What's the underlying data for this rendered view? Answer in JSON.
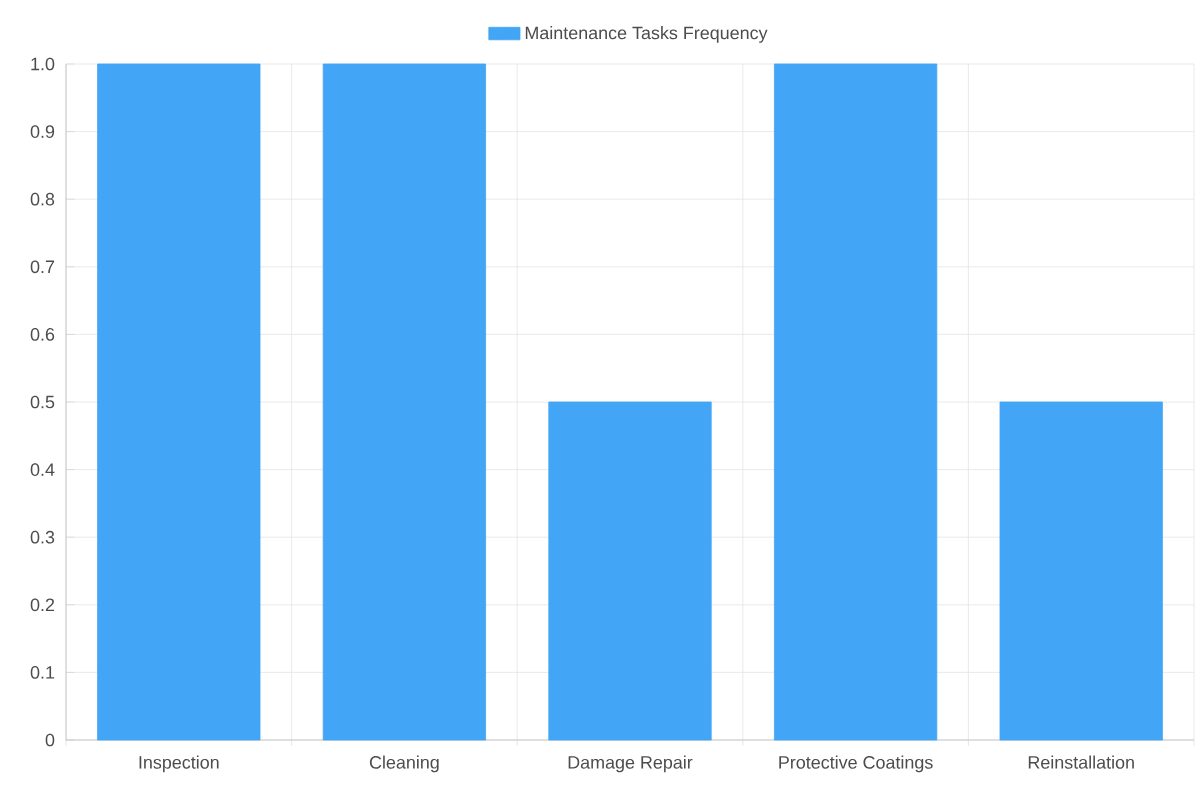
{
  "chart_data": {
    "type": "bar",
    "categories": [
      "Inspection",
      "Cleaning",
      "Damage Repair",
      "Protective Coatings",
      "Reinstallation"
    ],
    "series": [
      {
        "name": "Maintenance Tasks Frequency",
        "color": "#42a5f5",
        "values": [
          1,
          1,
          0.5,
          1,
          0.5
        ]
      }
    ],
    "ylim": [
      0,
      1
    ],
    "yticks": [
      0,
      0.1,
      0.2,
      0.3,
      0.4,
      0.5,
      0.6,
      0.7,
      0.8,
      0.9,
      {
        "value": 1,
        "label": "1.0"
      }
    ],
    "grid": true,
    "legend": "top"
  }
}
